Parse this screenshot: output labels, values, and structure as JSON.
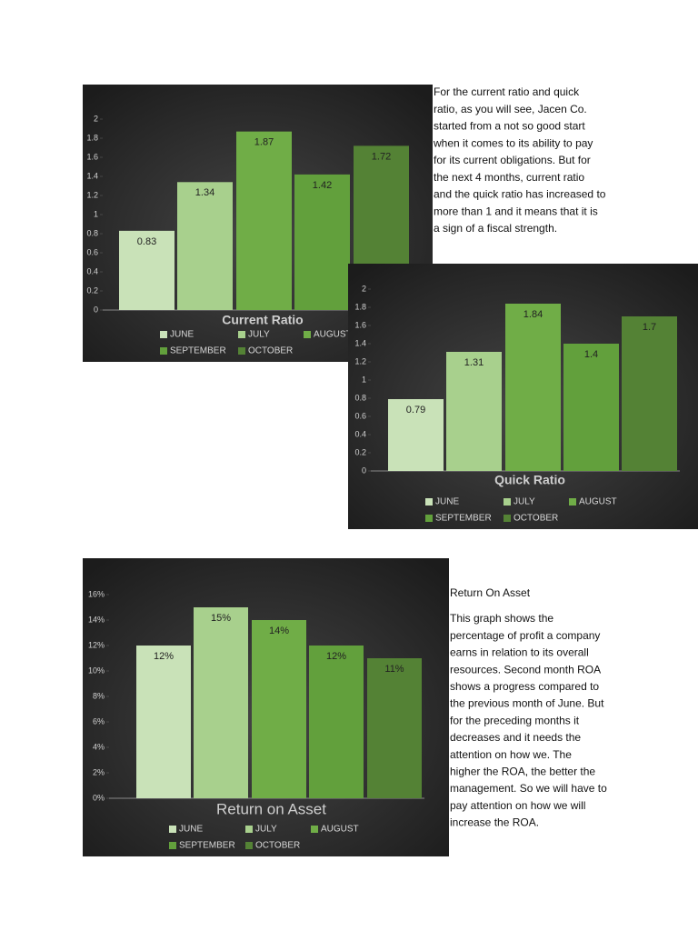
{
  "chart_data": [
    {
      "type": "bar",
      "title": "Current Ratio",
      "categories": [
        "JUNE",
        "JULY",
        "AUGUST",
        "SEPTEMBER",
        "OCTOBER"
      ],
      "values": [
        0.83,
        1.34,
        1.87,
        1.42,
        1.72
      ],
      "colors": [
        "#c9e2b8",
        "#a8d08d",
        "#70ad47",
        "#62a03c",
        "#548235"
      ],
      "ylim": [
        0,
        2
      ],
      "yticks": [
        0,
        0.2,
        0.4,
        0.6,
        0.8,
        1,
        1.2,
        1.4,
        1.6,
        1.8,
        2
      ]
    },
    {
      "type": "bar",
      "title": "Quick Ratio",
      "categories": [
        "JUNE",
        "JULY",
        "AUGUST",
        "SEPTEMBER",
        "OCTOBER"
      ],
      "values": [
        0.79,
        1.31,
        1.84,
        1.4,
        1.7
      ],
      "colors": [
        "#c9e2b8",
        "#a8d08d",
        "#70ad47",
        "#62a03c",
        "#548235"
      ],
      "ylim": [
        0,
        2
      ],
      "yticks": [
        0,
        0.2,
        0.4,
        0.6,
        0.8,
        1,
        1.2,
        1.4,
        1.6,
        1.8,
        2
      ]
    },
    {
      "type": "bar",
      "title": "Return on Asset",
      "categories": [
        "JUNE",
        "JULY",
        "AUGUST",
        "SEPTEMBER",
        "OCTOBER"
      ],
      "values": [
        12,
        15,
        14,
        12,
        11
      ],
      "value_labels": [
        "12%",
        "15%",
        "14%",
        "12%",
        "11%"
      ],
      "colors": [
        "#c9e2b8",
        "#a8d08d",
        "#70ad47",
        "#62a03c",
        "#548235"
      ],
      "ylim": [
        0,
        16
      ],
      "yticks": [
        {
          "value": 0,
          "label": "0%"
        },
        {
          "value": 2,
          "label": "2%"
        },
        {
          "value": 4,
          "label": "4%"
        },
        {
          "value": 6,
          "label": "6%"
        },
        {
          "value": 8,
          "label": "8%"
        },
        {
          "value": 10,
          "label": "10%"
        },
        {
          "value": 12,
          "label": "12%"
        },
        {
          "value": 14,
          "label": "14%"
        },
        {
          "value": 16,
          "label": "16%"
        }
      ]
    }
  ],
  "text_blocks": [
    {
      "lines": [
        "For the current ratio and quick",
        "ratio, as you will see, Jacen Co.",
        "started from a not so good start",
        "when it comes to its ability to pay",
        "for its current obligations. But for",
        "the next 4 months, current ratio",
        "and the quick ratio has increased to",
        "more than 1 and it means that it is",
        "a sign of a fiscal strength."
      ]
    },
    {
      "heading": "Return On Asset",
      "lines": [
        "This graph shows the",
        "percentage of profit a company",
        "earns in relation to its overall",
        "resources. Second month ROA",
        "shows a progress compared to",
        "the previous month of June. But",
        "for the preceding months it",
        "decreases and it needs the",
        "attention on how we. The",
        "higher the ROA, the better the",
        "management. So we will have to",
        "pay attention on how we will",
        "increase the ROA."
      ]
    }
  ]
}
